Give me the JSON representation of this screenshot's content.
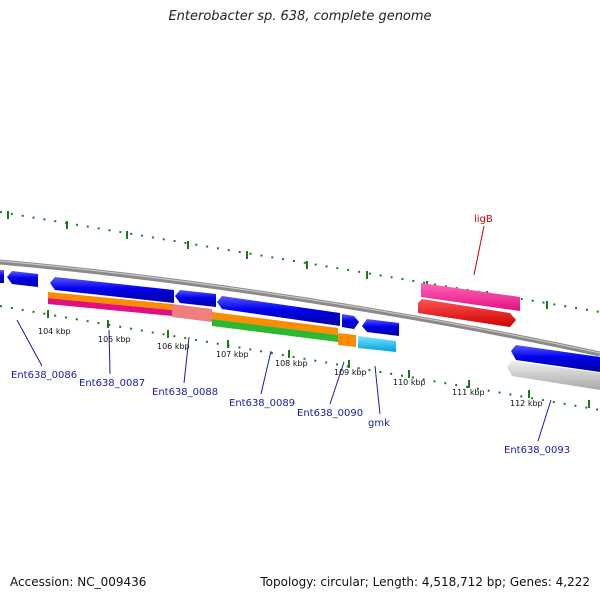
{
  "title": "Enterobacter sp. 638, complete genome",
  "footer": {
    "accession": "Accession: NC_009436",
    "stats": "Topology: circular; Length: 4,518,712 bp; Genes: 4,222"
  },
  "ticks": [
    "104 kbp",
    "105 kbp",
    "106 kbp",
    "107 kbp",
    "108 kbp",
    "109 kbp",
    "110 kbp",
    "111 kbp",
    "112 kbp"
  ],
  "gene_labels": [
    "Ent638_0086",
    "Ent638_0087",
    "Ent638_0088",
    "Ent638_0089",
    "Ent638_0090",
    "gmk",
    "Ent638_0093",
    "ligB"
  ],
  "colors": {
    "forward_gene": "#0000ee",
    "label_blue": "#1a1aa8",
    "label_red": "#cc0000",
    "backbone": "#8a8a8a",
    "tick": "#1a7a1a"
  }
}
